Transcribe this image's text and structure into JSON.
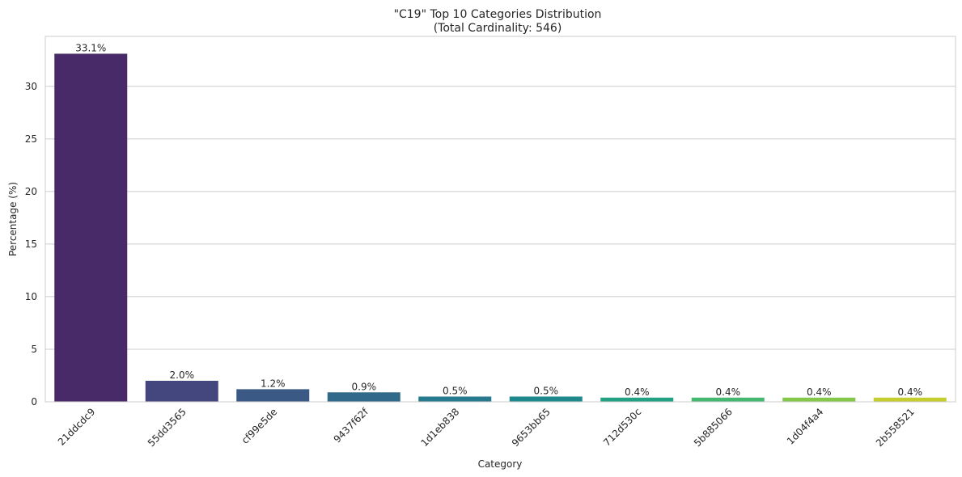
{
  "chart_data": {
    "type": "bar",
    "title_line1": "\"C19\" Top 10 Categories Distribution",
    "title_line2": "(Total Cardinality: 546)",
    "xlabel": "Category",
    "ylabel": "Percentage (%)",
    "categories": [
      "21ddcdc9",
      "55dd3565",
      "cf99e5de",
      "9437f62f",
      "1d1eb838",
      "9653bb65",
      "712d530c",
      "5b885066",
      "1d04f4a4",
      "2b558521"
    ],
    "values": [
      33.1,
      2.0,
      1.2,
      0.9,
      0.5,
      0.5,
      0.4,
      0.4,
      0.4,
      0.4
    ],
    "value_labels": [
      "33.1%",
      "2.0%",
      "1.2%",
      "0.9%",
      "0.5%",
      "0.5%",
      "0.4%",
      "0.4%",
      "0.4%",
      "0.4%"
    ],
    "colors": [
      "#482a68",
      "#44477e",
      "#3a5a85",
      "#31698a",
      "#277a8e",
      "#1f888c",
      "#24a083",
      "#45b770",
      "#85c74a",
      "#c4ce2e"
    ],
    "yticks": [
      "0",
      "5",
      "10",
      "15",
      "20",
      "25",
      "30"
    ],
    "ylim": [
      0,
      34.75
    ],
    "grid": "horizontal",
    "legend": "none"
  }
}
